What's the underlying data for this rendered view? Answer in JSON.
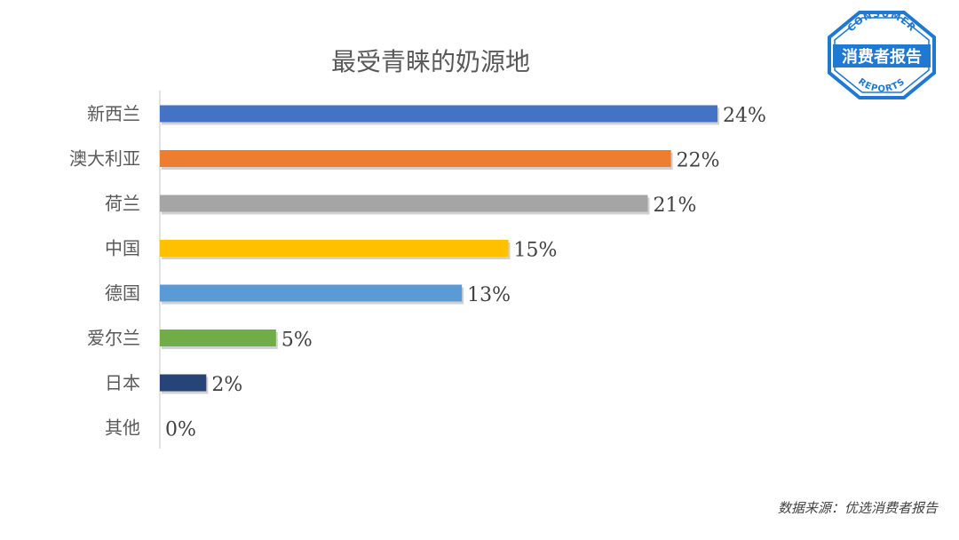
{
  "chart_data": {
    "type": "bar",
    "orientation": "horizontal",
    "title": "最受青睐的奶源地",
    "categories": [
      "新西兰",
      "澳大利亚",
      "荷兰",
      "中国",
      "德国",
      "爱尔兰",
      "日本",
      "其他"
    ],
    "values": [
      24,
      22,
      21,
      15,
      13,
      5,
      2,
      0
    ],
    "value_labels": [
      "24%",
      "22%",
      "21%",
      "15%",
      "13%",
      "5%",
      "2%",
      "0%"
    ],
    "colors": [
      "#4472C4",
      "#ED7D31",
      "#A5A5A5",
      "#FFC000",
      "#5B9BD5",
      "#70AD47",
      "#264478",
      "#9E480E"
    ],
    "unit": "%",
    "xlim": [
      0,
      24
    ],
    "grid": false,
    "legend": "none"
  },
  "source": "数据来源：优选消费者报告",
  "logo": {
    "top_text": "CONSUMER",
    "main_text": "消费者报告",
    "bottom_text": "REPORTS",
    "color": "#1F78D1"
  }
}
